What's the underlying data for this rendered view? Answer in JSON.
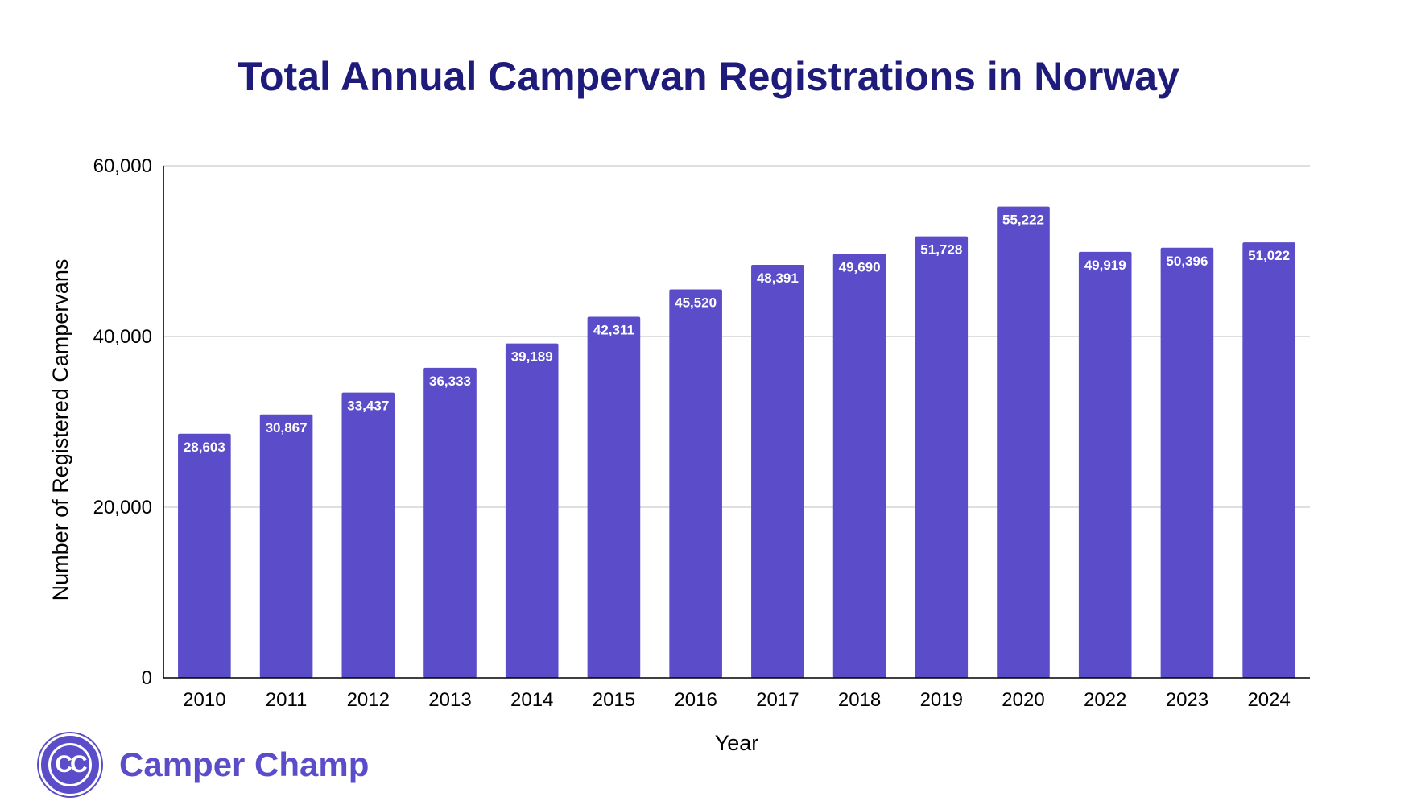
{
  "title": "Total Annual Campervan Registrations in Norway",
  "colors": {
    "title": "#1e1b7a",
    "bar": "#5b4cc9",
    "bar_label": "#ffffff",
    "grid": "#cccccc",
    "axis": "#000000",
    "brand": "#5b4cc9"
  },
  "brand": {
    "logo_text": "CC",
    "name": "Camper Champ"
  },
  "chart_data": {
    "type": "bar",
    "title": "Total Annual Campervan Registrations in Norway",
    "xlabel": "Year",
    "ylabel": "Number of Registered Campervans",
    "ylim": [
      0,
      60000
    ],
    "yticks": [
      0,
      20000,
      40000,
      60000
    ],
    "ytick_labels": [
      "0",
      "20,000",
      "40,000",
      "60,000"
    ],
    "grid": true,
    "legend": "none",
    "categories": [
      "2010",
      "2011",
      "2012",
      "2013",
      "2014",
      "2015",
      "2016",
      "2017",
      "2018",
      "2019",
      "2020",
      "2022",
      "2023",
      "2024"
    ],
    "values": [
      28603,
      30867,
      33437,
      36333,
      39189,
      42311,
      45520,
      48391,
      49690,
      51728,
      55222,
      49919,
      50396,
      51022
    ],
    "value_labels": [
      "28,603",
      "30,867",
      "33,437",
      "36,333",
      "39,189",
      "42,311",
      "45,520",
      "48,391",
      "49,690",
      "51,728",
      "55,222",
      "49,919",
      "50,396",
      "51,022"
    ]
  }
}
